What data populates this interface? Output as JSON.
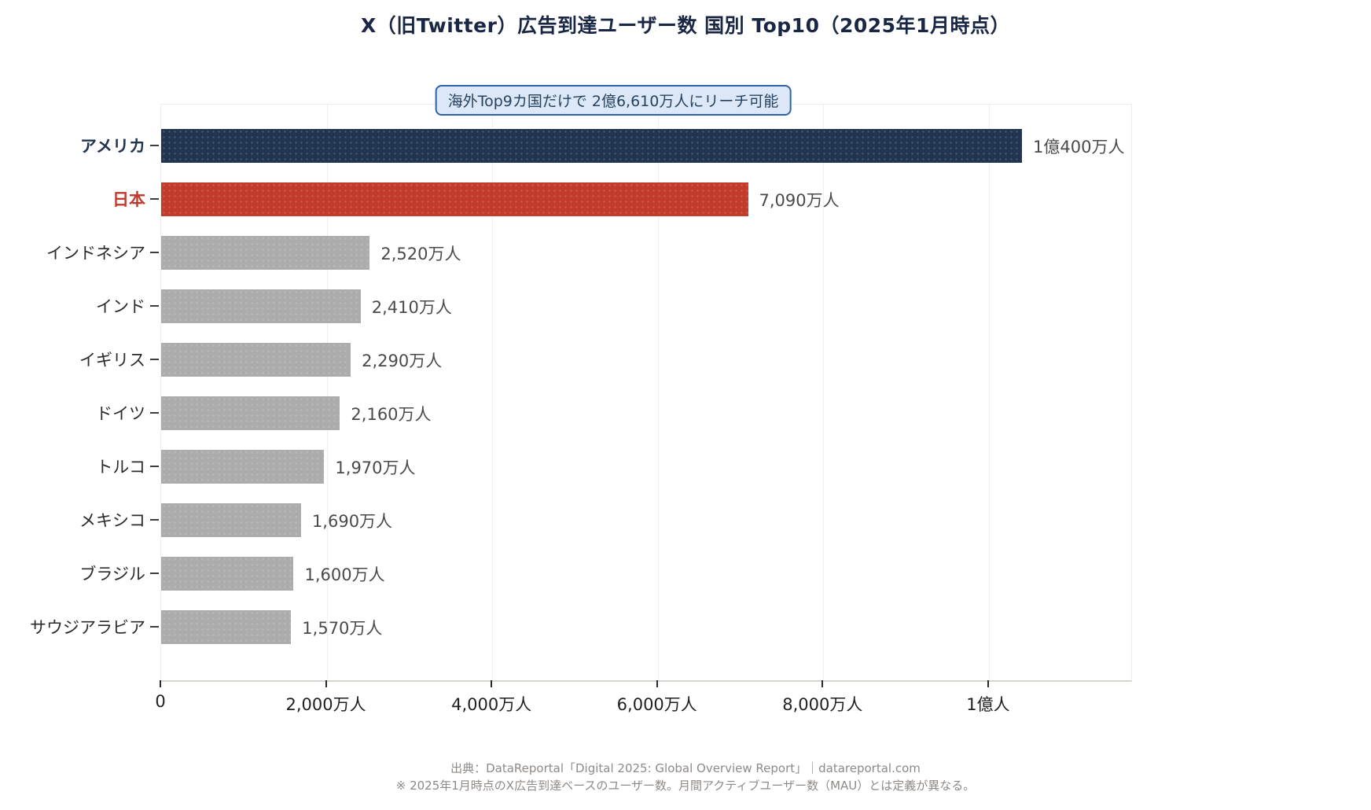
{
  "title": "X（旧Twitter）広告到達ユーザー数 国別 Top10（2025年1月時点）",
  "chart_data": {
    "type": "bar",
    "orientation": "horizontal",
    "title": "X（旧Twitter）広告到達ユーザー数 国別 Top10（2025年1月時点）",
    "annotation": "海外Top9カ国だけで 2億6,610万人にリーチ可能",
    "unit": "万人",
    "categories": [
      "アメリカ",
      "日本",
      "インドネシア",
      "インド",
      "イギリス",
      "ドイツ",
      "トルコ",
      "メキシコ",
      "ブラジル",
      "サウジアラビア"
    ],
    "values": [
      10400,
      7090,
      2520,
      2410,
      2290,
      2160,
      1970,
      1690,
      1600,
      1570
    ],
    "value_labels": [
      "1億400万人",
      "7,090万人",
      "2,520万人",
      "2,410万人",
      "2,290万人",
      "2,160万人",
      "1,970万人",
      "1,690万人",
      "1,600万人",
      "1,570万人"
    ],
    "bar_colors": [
      "#213551",
      "#c23b2b",
      "#acacac",
      "#acacac",
      "#acacac",
      "#acacac",
      "#acacac",
      "#acacac",
      "#acacac",
      "#acacac"
    ],
    "category_label_colors": [
      "#213551",
      "#c0392b",
      "#2b2b2b",
      "#2b2b2b",
      "#2b2b2b",
      "#2b2b2b",
      "#2b2b2b",
      "#2b2b2b",
      "#2b2b2b",
      "#2b2b2b"
    ],
    "category_label_bold": [
      true,
      true,
      false,
      false,
      false,
      false,
      false,
      false,
      false,
      false
    ],
    "x_ticks": [
      {
        "value": 0,
        "label": "0"
      },
      {
        "value": 2000,
        "label": "2,000万人"
      },
      {
        "value": 4000,
        "label": "4,000万人"
      },
      {
        "value": 6000,
        "label": "6,000万人"
      },
      {
        "value": 8000,
        "label": "8,000万人"
      },
      {
        "value": 10000,
        "label": "1億人"
      }
    ],
    "xlim": [
      0,
      11720
    ],
    "grid": "vertical-only",
    "legend": "none"
  },
  "colors": {
    "title_text": "#1a2744",
    "value_text": "#4a4a4a",
    "annotation_bg": "#dce8f7",
    "annotation_border": "#2e62a8",
    "annotation_text": "#27425f",
    "footer_text": "#8e8a87",
    "navy": "#213551",
    "red": "#c23b2b",
    "gray": "#acacac"
  },
  "footer": {
    "source": "出典：DataReportal「Digital 2025: Global Overview Report」｜datareportal.com",
    "note": "※ 2025年1月時点のX広告到達ベースのユーザー数。月間アクティブユーザー数（MAU）とは定義が異なる。"
  }
}
